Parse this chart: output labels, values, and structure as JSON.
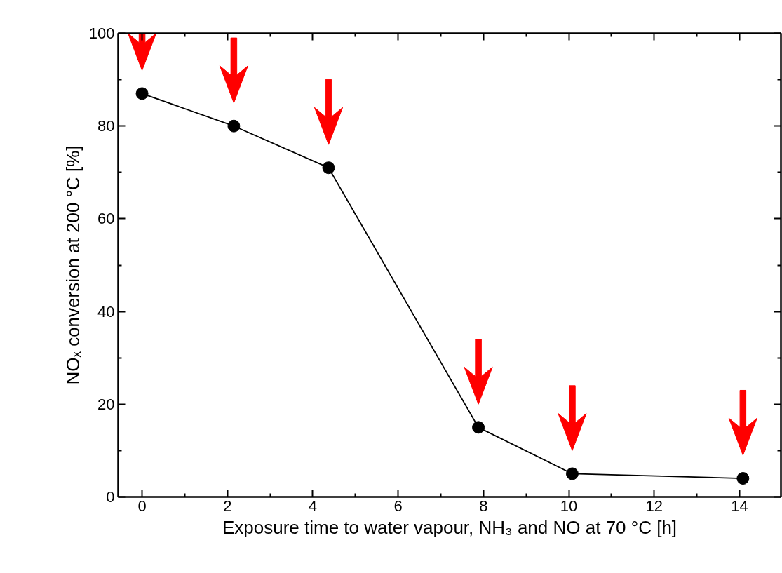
{
  "chart_data": {
    "type": "line",
    "xlabel": "Exposure time to water vapour, NH₃ and NO at 70 °C [h]",
    "ylabel": "NOₓ conversion at 200 °C [%]",
    "x": [
      0,
      2.15,
      4.37,
      7.88,
      10.08,
      14.08
    ],
    "series": [
      {
        "color": "#000000",
        "values": [
          87,
          80,
          71,
          15,
          5,
          4
        ]
      }
    ],
    "marker": "circle",
    "line_style": "solid",
    "grid": false,
    "xlim": [
      -0.56,
      14.97
    ],
    "xticks": [
      0,
      2,
      4,
      6,
      8,
      10,
      12,
      14
    ],
    "ylim": [
      0,
      100
    ],
    "yticks": [
      0,
      20,
      40,
      60,
      80,
      100
    ]
  }
}
